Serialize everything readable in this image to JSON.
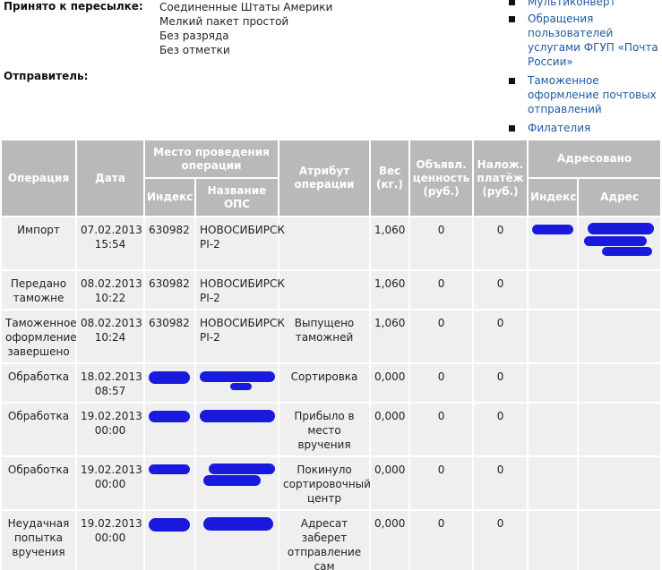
{
  "info": {
    "accepted_label": "Принято к пересылке:",
    "sender_label": "Отправитель:",
    "values": [
      "Соединенные Штаты Америки",
      "Мелкий пакет простой",
      "Без разряда",
      "Без отметки"
    ]
  },
  "links": [
    "Мультиконверт",
    "Обращения пользователей услугами ФГУП «Почта России»",
    "Таможенное оформление почтовых отправлений",
    "Филателия"
  ],
  "colors": {
    "header_bg": "#b9b9b9",
    "row_bg": "#efefef",
    "link": "#1f5aa6",
    "redaction": "#1a1adf"
  },
  "table": {
    "headers": {
      "operation": "Операция",
      "date": "Дата",
      "place": "Место проведения операции",
      "index": "Индекс",
      "ops_name": "Название ОПС",
      "attribute": "Атрибут операции",
      "weight": "Вес (кг.)",
      "declared": "Объявл. ценность (руб.)",
      "cod": "Налож. платёж (руб.)",
      "addressed": "Адресовано",
      "addr_index": "Индекс",
      "address": "Адрес"
    },
    "rows": [
      {
        "operation": "Импорт",
        "date": "07.02.2013 15:54",
        "index": "630982",
        "ops": "НОВОСИБИРСК PI-2",
        "attr": "",
        "weight": "1,060",
        "declared": "0",
        "cod": "0"
      },
      {
        "operation": "Передано таможне",
        "date": "08.02.2013 10:22",
        "index": "630982",
        "ops": "НОВОСИБИРСК PI-2",
        "attr": "",
        "weight": "1,060",
        "declared": "0",
        "cod": "0"
      },
      {
        "operation": "Таможенное оформление завершено",
        "date": "08.02.2013 10:24",
        "index": "630982",
        "ops": "НОВОСИБИРСК PI-2",
        "attr": "Выпущено таможней",
        "weight": "1,060",
        "declared": "0",
        "cod": "0"
      },
      {
        "operation": "Обработка",
        "date": "18.02.2013 08:57",
        "index": "",
        "ops": "",
        "attr": "Сортировка",
        "weight": "0,000",
        "declared": "0",
        "cod": "0"
      },
      {
        "operation": "Обработка",
        "date": "19.02.2013 00:00",
        "index": "",
        "ops": "",
        "attr": "Прибыло в место вручения",
        "weight": "0,000",
        "declared": "0",
        "cod": "0"
      },
      {
        "operation": "Обработка",
        "date": "19.02.2013 00:00",
        "index": "",
        "ops": "",
        "attr": "Покинуло сортировочный центр",
        "weight": "0,000",
        "declared": "0",
        "cod": "0"
      },
      {
        "operation": "Неудачная попытка вручения",
        "date": "19.02.2013 00:00",
        "index": "",
        "ops": "",
        "attr": "Адресат заберет отправление сам",
        "weight": "0,000",
        "declared": "0",
        "cod": "0"
      }
    ]
  }
}
